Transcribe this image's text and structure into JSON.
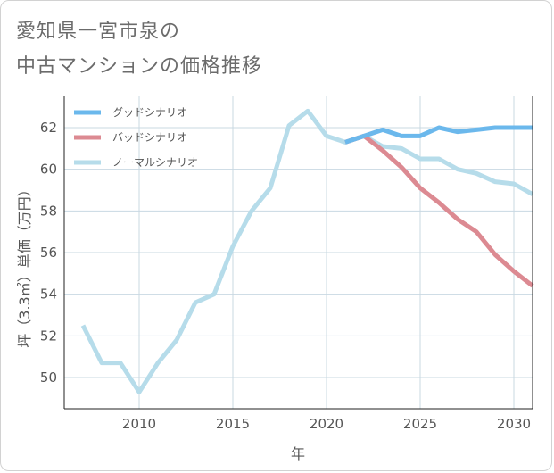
{
  "title": {
    "line1": "愛知県一宮市泉の",
    "line2": "中古マンションの価格推移"
  },
  "chart_data": {
    "type": "line",
    "xlabel": "年",
    "ylabel": "坪（3.3㎡）単価（万円）",
    "xlim": [
      2006,
      2031
    ],
    "ylim": [
      48.5,
      63.5
    ],
    "x_ticks": [
      2010,
      2015,
      2020,
      2025,
      2030
    ],
    "y_ticks": [
      50,
      52,
      54,
      56,
      58,
      60,
      62
    ],
    "grid": true,
    "legend_position": "top-left",
    "series": [
      {
        "name": "グッドシナリオ",
        "color": "#6bb8ec",
        "x": [
          2021,
          2022,
          2023,
          2024,
          2025,
          2026,
          2027,
          2028,
          2029,
          2030,
          2031
        ],
        "y": [
          61.3,
          61.6,
          61.9,
          61.6,
          61.6,
          62.0,
          61.8,
          61.9,
          62.0,
          62.0,
          62.0
        ]
      },
      {
        "name": "バッドシナリオ",
        "color": "#dc8a92",
        "x": [
          2021,
          2022,
          2023,
          2024,
          2025,
          2026,
          2027,
          2028,
          2029,
          2030,
          2031
        ],
        "y": [
          61.3,
          61.6,
          60.9,
          60.1,
          59.1,
          58.4,
          57.6,
          57.0,
          55.9,
          55.1,
          54.4
        ]
      },
      {
        "name": "ノーマルシナリオ",
        "color": "#b6dcea",
        "x": [
          2007,
          2008,
          2009,
          2010,
          2011,
          2012,
          2013,
          2014,
          2015,
          2016,
          2017,
          2018,
          2019,
          2020,
          2021,
          2022,
          2023,
          2024,
          2025,
          2026,
          2027,
          2028,
          2029,
          2030,
          2031
        ],
        "y": [
          52.5,
          50.7,
          50.7,
          49.3,
          50.7,
          51.8,
          53.6,
          54.0,
          56.3,
          58.0,
          59.1,
          62.1,
          62.8,
          61.6,
          61.3,
          61.6,
          61.1,
          61.0,
          60.5,
          60.5,
          60.0,
          59.8,
          59.4,
          59.3,
          58.8
        ]
      }
    ]
  }
}
